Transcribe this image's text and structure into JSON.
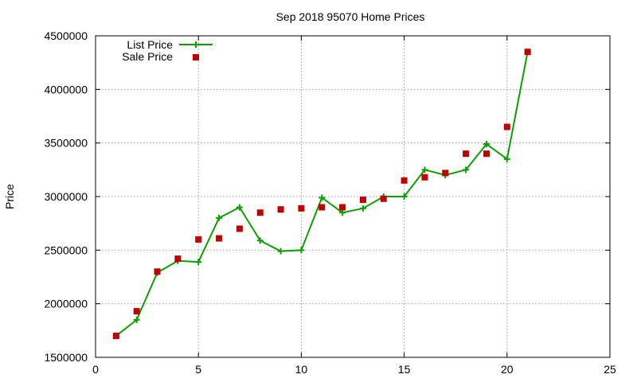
{
  "chart_data": {
    "type": "line",
    "title": "Sep 2018 95070 Home Prices",
    "xlabel": "",
    "ylabel": "Price",
    "xlim": [
      0,
      25
    ],
    "ylim": [
      1500000,
      4500000
    ],
    "x_ticks": [
      0,
      5,
      10,
      15,
      20,
      25
    ],
    "y_ticks": [
      1500000,
      2000000,
      2500000,
      3000000,
      3500000,
      4000000,
      4500000
    ],
    "grid": true,
    "legend_position": "top-left",
    "series": [
      {
        "name": "List Price",
        "style": "line-with-plus-markers",
        "color": "#0aa000",
        "x": [
          1,
          2,
          3,
          4,
          5,
          6,
          7,
          8,
          9,
          10,
          11,
          12,
          13,
          14,
          15,
          16,
          17,
          18,
          19,
          20,
          21
        ],
        "values": [
          1700000,
          1850000,
          2290000,
          2400000,
          2390000,
          2800000,
          2900000,
          2590000,
          2490000,
          2500000,
          2990000,
          2850000,
          2890000,
          3000000,
          3000000,
          3250000,
          3200000,
          3250000,
          3490000,
          3350000,
          4350000
        ]
      },
      {
        "name": "Sale Price",
        "style": "square-points",
        "color": "#c00000",
        "x": [
          1,
          2,
          3,
          4,
          5,
          6,
          7,
          8,
          9,
          10,
          11,
          12,
          13,
          14,
          15,
          16,
          17,
          18,
          19,
          20,
          21
        ],
        "values": [
          1700000,
          1930000,
          2300000,
          2420000,
          2600000,
          2610000,
          2700000,
          2850000,
          2880000,
          2890000,
          2900000,
          2900000,
          2970000,
          2980000,
          3150000,
          3180000,
          3220000,
          3400000,
          3400000,
          3650000,
          4350000
        ]
      }
    ]
  }
}
